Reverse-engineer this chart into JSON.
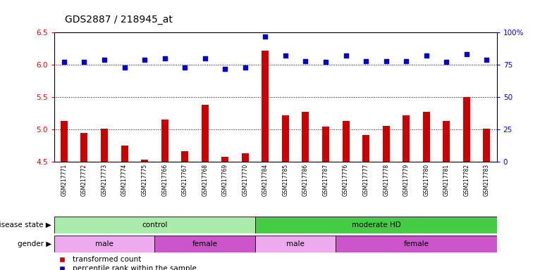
{
  "title": "GDS2887 / 218945_at",
  "samples": [
    "GSM217771",
    "GSM217772",
    "GSM217773",
    "GSM217774",
    "GSM217775",
    "GSM217766",
    "GSM217767",
    "GSM217768",
    "GSM217769",
    "GSM217770",
    "GSM217784",
    "GSM217785",
    "GSM217786",
    "GSM217787",
    "GSM217776",
    "GSM217777",
    "GSM217778",
    "GSM217779",
    "GSM217780",
    "GSM217781",
    "GSM217782",
    "GSM217783"
  ],
  "transformed_count": [
    5.13,
    4.95,
    5.01,
    4.75,
    4.54,
    5.16,
    4.67,
    5.38,
    4.58,
    4.63,
    6.22,
    5.22,
    5.28,
    5.05,
    5.13,
    4.92,
    5.06,
    5.22,
    5.28,
    5.13,
    5.5,
    5.01
  ],
  "percentile_rank": [
    77,
    77,
    79,
    73,
    79,
    80,
    73,
    80,
    72,
    73,
    97,
    82,
    78,
    77,
    82,
    78,
    78,
    78,
    82,
    77,
    83,
    79
  ],
  "ylim_left": [
    4.5,
    6.5
  ],
  "ylim_right": [
    0,
    100
  ],
  "yticks_left": [
    4.5,
    5.0,
    5.5,
    6.0,
    6.5
  ],
  "yticks_right": [
    0,
    25,
    50,
    75,
    100
  ],
  "ytick_labels_right": [
    "0",
    "25",
    "50",
    "75",
    "100%"
  ],
  "bar_color": "#cc0000",
  "dot_color": "#0000cc",
  "background_color": "#ffffff",
  "plot_bg_color": "#ffffff",
  "disease_state_groups": [
    {
      "label": "control",
      "start": 0,
      "end": 10,
      "color": "#aaeaaa"
    },
    {
      "label": "moderate HD",
      "start": 10,
      "end": 22,
      "color": "#44cc44"
    }
  ],
  "gender_groups": [
    {
      "label": "male",
      "start": 0,
      "end": 5,
      "color": "#eeaaee"
    },
    {
      "label": "female",
      "start": 5,
      "end": 10,
      "color": "#cc55cc"
    },
    {
      "label": "male",
      "start": 10,
      "end": 14,
      "color": "#eeaaee"
    },
    {
      "label": "female",
      "start": 14,
      "end": 22,
      "color": "#cc55cc"
    }
  ],
  "disease_state_label": "disease state",
  "gender_label": "gender",
  "legend_items": [
    "transformed count",
    "percentile rank within the sample"
  ],
  "legend_colors": [
    "#cc0000",
    "#0000cc"
  ]
}
